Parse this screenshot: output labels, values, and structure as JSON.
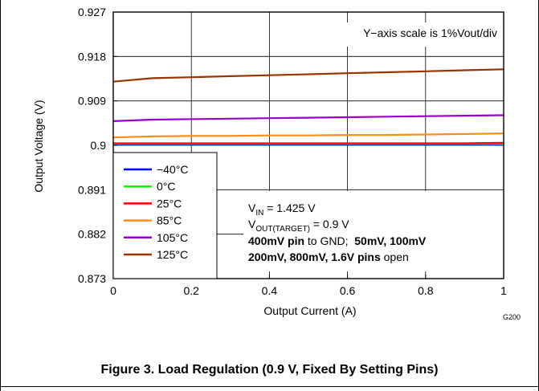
{
  "chart_data": {
    "type": "line",
    "title": "",
    "xlabel": "Output Current (A)",
    "ylabel": "Output Voltage (V)",
    "xlim": [
      0,
      1
    ],
    "ylim": [
      0.873,
      0.927
    ],
    "x_ticks": [
      0,
      0.2,
      0.4,
      0.6,
      0.8,
      1
    ],
    "x_tick_labels": [
      "0",
      "0.2",
      "0.4",
      "0.6",
      "0.8",
      "1"
    ],
    "y_ticks": [
      0.873,
      0.882,
      0.891,
      0.9,
      0.909,
      0.918,
      0.927
    ],
    "y_tick_labels": [
      "0.873",
      "0.882",
      "0.891",
      "0.9",
      "0.909",
      "0.918",
      "0.927"
    ],
    "grid": true,
    "legend_position": "bottom-left",
    "x": [
      0,
      0.1,
      0.2,
      0.3,
      0.4,
      0.5,
      0.6,
      0.7,
      0.8,
      0.9,
      1.0
    ],
    "series": [
      {
        "name": "−40°C",
        "color": "#0000ff",
        "values": [
          0.9002,
          0.9002,
          0.9002,
          0.9002,
          0.9002,
          0.9002,
          0.9002,
          0.9002,
          0.9002,
          0.9002,
          0.9002
        ]
      },
      {
        "name": "0°C",
        "color": "#00ff00",
        "values": [
          0.9003,
          0.9003,
          0.9003,
          0.9003,
          0.9003,
          0.9003,
          0.9003,
          0.9003,
          0.9003,
          0.9003,
          0.9003
        ]
      },
      {
        "name": "25°C",
        "color": "#ff0000",
        "values": [
          0.9004,
          0.9004,
          0.9004,
          0.9004,
          0.9004,
          0.9004,
          0.9004,
          0.9004,
          0.9004,
          0.9004,
          0.9005
        ]
      },
      {
        "name": "85°C",
        "color": "#ff8c1a",
        "values": [
          0.9016,
          0.9018,
          0.9019,
          0.9019,
          0.902,
          0.902,
          0.9021,
          0.9021,
          0.9022,
          0.9023,
          0.9024
        ]
      },
      {
        "name": "105°C",
        "color": "#9900cc",
        "values": [
          0.9049,
          0.9052,
          0.9053,
          0.9054,
          0.9055,
          0.9056,
          0.9057,
          0.9058,
          0.9059,
          0.906,
          0.9061
        ]
      },
      {
        "name": "125°C",
        "color": "#993300",
        "values": [
          0.9129,
          0.9136,
          0.9138,
          0.914,
          0.9142,
          0.9144,
          0.9146,
          0.9148,
          0.915,
          0.9152,
          0.9154
        ]
      }
    ],
    "annotation_scale": "Y−axis scale is 1%Vout/div",
    "conditions": {
      "vin_main": "V",
      "vin_sub": "IN",
      "vin_value": " = 1.425 V",
      "vout_main": "V",
      "vout_sub": "OUT(TARGET)",
      "vout_value": " = 0.9 V",
      "line3_bold": "400mV pin",
      "line3_normal": " to GND;  ",
      "line3_bold2": "50mV, 100mV",
      "line4_bold": "200mV, 800mV, 1.6V pins",
      "line4_normal": " open"
    },
    "graph_id": "G200"
  },
  "caption": "Figure 3. Load Regulation (0.9 V, Fixed By Setting Pins)"
}
